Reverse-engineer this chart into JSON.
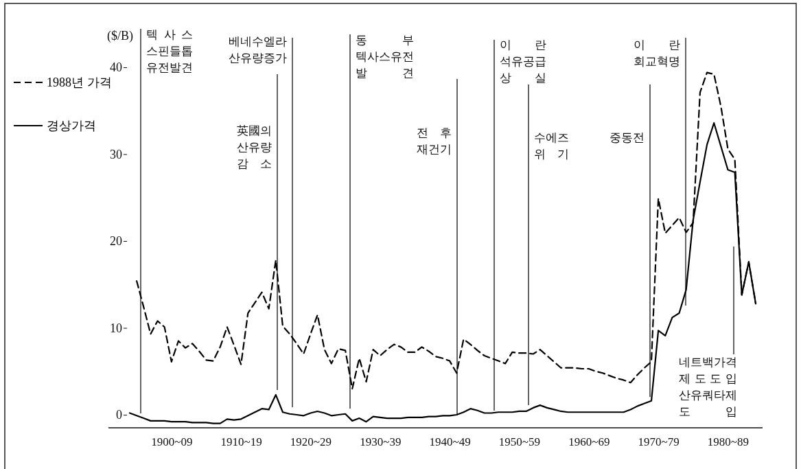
{
  "chart_data": {
    "type": "line",
    "ylabel": "($/B)",
    "legend": "left",
    "grid": false,
    "categories": [
      null,
      null,
      null,
      null,
      null,
      null,
      "1900~09",
      null,
      null,
      null,
      null,
      null,
      null,
      null,
      null,
      null,
      "1910~19",
      null,
      null,
      null,
      null,
      null,
      null,
      null,
      null,
      null,
      "1920~29",
      null,
      null,
      null,
      null,
      null,
      null,
      null,
      null,
      null,
      "1930~39",
      null,
      null,
      null,
      null,
      null,
      null,
      null,
      null,
      null,
      "1940~49",
      null,
      null,
      null,
      null,
      null,
      null,
      null,
      null,
      null,
      "1950~59",
      null,
      null,
      null,
      null,
      null,
      null,
      null,
      null,
      null,
      "1960~69",
      null,
      null,
      null,
      null,
      null,
      null,
      null,
      null,
      null,
      "1970~79",
      null,
      null,
      null,
      null,
      null,
      null,
      null,
      null,
      null,
      "1980~89",
      null,
      null,
      null,
      null
    ],
    "ylim": [
      -1.5,
      40
    ],
    "yticks": [
      0,
      10,
      20,
      30,
      40
    ],
    "series": [
      {
        "name": "1988년 가격",
        "color": "#000000",
        "line_style": "dashed",
        "values": [
          null,
          15.4,
          12.4,
          9.3,
          10.8,
          10.1,
          6.1,
          8.5,
          7.7,
          8.2,
          7.3,
          6.3,
          6.2,
          7.8,
          10.1,
          8.0,
          5.8,
          11.7,
          12.9,
          14.1,
          12.2,
          17.8,
          10.2,
          9.3,
          8.2,
          7.0,
          9.3,
          11.5,
          7.5,
          5.9,
          7.6,
          7.4,
          3.0,
          6.5,
          3.8,
          7.5,
          6.8,
          7.5,
          8.1,
          7.8,
          7.2,
          7.2,
          7.8,
          7.3,
          6.7,
          6.5,
          6.2,
          4.8,
          8.7,
          8.1,
          7.4,
          6.8,
          6.5,
          6.2,
          5.9,
          7.2,
          7.1,
          7.1,
          7.0,
          7.5,
          6.8,
          6.1,
          5.4,
          5.4,
          5.4,
          5.3,
          5.3,
          5.0,
          4.8,
          4.5,
          4.2,
          4.0,
          3.7,
          4.6,
          5.4,
          6.1,
          24.9,
          20.9,
          21.8,
          22.7,
          21.0,
          22.1,
          37.1,
          39.4,
          39.2,
          35.5,
          30.6,
          29.4,
          13.8,
          17.6,
          12.8
        ]
      },
      {
        "name": "경상가격",
        "color": "#000000",
        "line_style": "solid",
        "values": [
          0.2,
          -0.1,
          -0.4,
          -0.7,
          -0.7,
          -0.7,
          -0.8,
          -0.8,
          -0.8,
          -0.9,
          -0.9,
          -0.9,
          -1.0,
          -1.0,
          -0.5,
          -0.6,
          -0.5,
          -0.1,
          0.3,
          0.7,
          0.6,
          2.3,
          0.3,
          0.1,
          0.0,
          -0.1,
          0.2,
          0.4,
          0.2,
          -0.1,
          0.0,
          0.1,
          -0.7,
          -0.4,
          -0.8,
          -0.2,
          -0.3,
          -0.4,
          -0.4,
          -0.4,
          -0.3,
          -0.3,
          -0.3,
          -0.2,
          -0.2,
          -0.1,
          -0.1,
          0.0,
          0.3,
          0.7,
          0.5,
          0.2,
          0.2,
          0.3,
          0.3,
          0.3,
          0.4,
          0.4,
          0.8,
          1.1,
          0.8,
          0.6,
          0.4,
          0.3,
          0.3,
          0.3,
          0.3,
          0.3,
          0.3,
          0.3,
          0.3,
          0.3,
          0.6,
          1.0,
          1.3,
          1.6,
          9.7,
          9.1,
          11.2,
          11.7,
          14.4,
          22.4,
          26.8,
          31.1,
          33.6,
          30.9,
          28.2,
          27.9,
          13.8,
          17.6,
          12.8
        ]
      }
    ],
    "annotations": [
      "텍사스\n스핀들톱\n유전발견",
      "英國의\n산유량\n감소",
      "베네수엘라\n산유량증가",
      "동부\n텍사스유전\n발견",
      "전후\n재건기",
      "이란\n석유공급\n상실",
      "수에즈\n위기",
      "중동전",
      "이란\n회교혁명",
      "네트백가격\n제도도입\n산유쿼타제\n도입"
    ]
  }
}
